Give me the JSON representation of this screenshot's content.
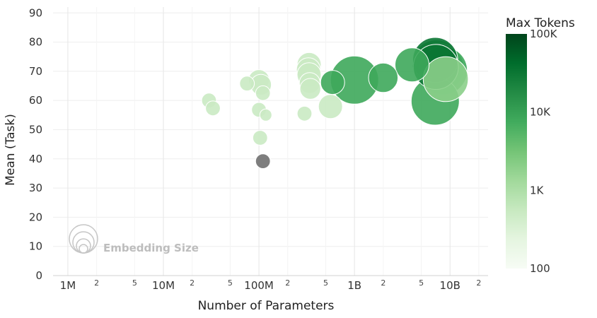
{
  "chart_data": {
    "type": "scatter",
    "xlabel": "Number of Parameters",
    "ylabel": "Mean (Task)",
    "xscale": "log",
    "xlim": [
      700000,
      25000000000
    ],
    "ylim": [
      0,
      92
    ],
    "x_ticks": [
      {
        "value": 1000000,
        "label": "1M"
      },
      {
        "value": 10000000,
        "label": "10M"
      },
      {
        "value": 100000000,
        "label": "100M"
      },
      {
        "value": 1000000000,
        "label": "1B"
      },
      {
        "value": 10000000000,
        "label": "10B"
      }
    ],
    "x_minor_ticks": [
      {
        "value": 2000000,
        "label": "2"
      },
      {
        "value": 5000000,
        "label": "5"
      },
      {
        "value": 20000000,
        "label": "2"
      },
      {
        "value": 50000000,
        "label": "5"
      },
      {
        "value": 200000000,
        "label": "2"
      },
      {
        "value": 500000000,
        "label": "5"
      },
      {
        "value": 2000000000,
        "label": "2"
      },
      {
        "value": 5000000000,
        "label": "5"
      },
      {
        "value": 20000000000,
        "label": "2"
      }
    ],
    "y_ticks": [
      0,
      10,
      20,
      30,
      40,
      50,
      60,
      70,
      80,
      90
    ],
    "grid": true,
    "colorbar": {
      "title": "Max Tokens",
      "scale": "log",
      "range": [
        100,
        100000
      ],
      "ticks": [
        {
          "value": 100000,
          "label": "100K"
        },
        {
          "value": 10000,
          "label": "10K"
        },
        {
          "value": 1000,
          "label": "1K"
        },
        {
          "value": 100,
          "label": "100"
        }
      ],
      "colors": [
        "#f7fcf5",
        "#e5f5e0",
        "#c7e9c0",
        "#a1d99b",
        "#74c476",
        "#41ab5d",
        "#238b45",
        "#006d2c",
        "#00441b"
      ]
    },
    "size_legend": {
      "label": "Embedding Size",
      "placement": "bottom-left"
    },
    "missing_color": "#707070",
    "points": [
      {
        "x": 30000000,
        "y": 60,
        "max_tokens": 512,
        "embedding_size": 384
      },
      {
        "x": 33000000,
        "y": 57.3,
        "max_tokens": 512,
        "embedding_size": 384
      },
      {
        "x": 75000000,
        "y": 65.8,
        "max_tokens": 512,
        "embedding_size": 384
      },
      {
        "x": 100000000,
        "y": 67,
        "max_tokens": 512,
        "embedding_size": 768
      },
      {
        "x": 105000000,
        "y": 65.4,
        "max_tokens": 512,
        "embedding_size": 768
      },
      {
        "x": 110000000,
        "y": 62.5,
        "max_tokens": 512,
        "embedding_size": 384
      },
      {
        "x": 100000000,
        "y": 56.8,
        "max_tokens": 512,
        "embedding_size": 384
      },
      {
        "x": 118000000,
        "y": 55,
        "max_tokens": 512,
        "embedding_size": 256
      },
      {
        "x": 103000000,
        "y": 47.2,
        "max_tokens": 512,
        "embedding_size": 384
      },
      {
        "x": 110000000,
        "y": 39.2,
        "max_tokens": null,
        "embedding_size": 384
      },
      {
        "x": 300000000,
        "y": 55.5,
        "max_tokens": 512,
        "embedding_size": 384
      },
      {
        "x": 335000000,
        "y": 72.3,
        "max_tokens": 512,
        "embedding_size": 1024
      },
      {
        "x": 330000000,
        "y": 70.5,
        "max_tokens": 512,
        "embedding_size": 1024
      },
      {
        "x": 335000000,
        "y": 68.8,
        "max_tokens": 512,
        "embedding_size": 1024
      },
      {
        "x": 340000000,
        "y": 66,
        "max_tokens": 512,
        "embedding_size": 768
      },
      {
        "x": 345000000,
        "y": 64,
        "max_tokens": 512,
        "embedding_size": 768
      },
      {
        "x": 560000000,
        "y": 57.9,
        "max_tokens": 514,
        "embedding_size": 1024
      },
      {
        "x": 590000000,
        "y": 66.2,
        "max_tokens": 8192,
        "embedding_size": 1024
      },
      {
        "x": 1000000000,
        "y": 67,
        "max_tokens": 8192,
        "embedding_size": 4096
      },
      {
        "x": 2000000000,
        "y": 67.8,
        "max_tokens": 8192,
        "embedding_size": 1536
      },
      {
        "x": 4000000000,
        "y": 72.2,
        "max_tokens": 8192,
        "embedding_size": 2048
      },
      {
        "x": 7000000000,
        "y": 73.9,
        "max_tokens": 32768,
        "embedding_size": 3584
      },
      {
        "x": 7100000000,
        "y": 71.5,
        "max_tokens": 32768,
        "embedding_size": 3584
      },
      {
        "x": 7200000000,
        "y": 72.5,
        "max_tokens": 8192,
        "embedding_size": 4096
      },
      {
        "x": 7800000000,
        "y": 71.2,
        "max_tokens": 8192,
        "embedding_size": 4096
      },
      {
        "x": 8500000000,
        "y": 70.2,
        "max_tokens": 8192,
        "embedding_size": 4096
      },
      {
        "x": 7000000000,
        "y": 59.8,
        "max_tokens": 8192,
        "embedding_size": 4096
      },
      {
        "x": 9000000000,
        "y": 67.3,
        "max_tokens": 2048,
        "embedding_size": 3584
      }
    ]
  }
}
